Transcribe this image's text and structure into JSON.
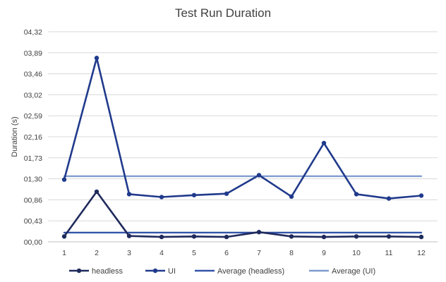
{
  "chart_data": {
    "type": "line",
    "title": "Test Run Duration",
    "xlabel": "",
    "ylabel": "Duration (s)",
    "categories": [
      "1",
      "2",
      "3",
      "4",
      "5",
      "6",
      "7",
      "8",
      "9",
      "10",
      "11",
      "12"
    ],
    "y_ticks": [
      "00,00",
      "00,43",
      "00,86",
      "01,30",
      "01,73",
      "02,16",
      "02,59",
      "03,02",
      "03,46",
      "03,89",
      "04,32"
    ],
    "ylim": [
      0,
      4.32
    ],
    "grid": true,
    "legend_position": "bottom",
    "series": [
      {
        "name": "headless",
        "color": "#1f2a5c",
        "markers": true,
        "values": [
          0.11,
          1.03,
          0.12,
          0.1,
          0.11,
          0.1,
          0.2,
          0.11,
          0.1,
          0.11,
          0.11,
          0.1
        ]
      },
      {
        "name": "UI",
        "color": "#203a8c",
        "markers": true,
        "values": [
          1.28,
          3.78,
          0.98,
          0.92,
          0.96,
          0.99,
          1.37,
          0.93,
          2.03,
          0.98,
          0.89,
          0.95
        ]
      },
      {
        "name": "Average (headless)",
        "color": "#3355aa",
        "markers": false,
        "values": [
          0.19,
          0.19,
          0.19,
          0.19,
          0.19,
          0.19,
          0.19,
          0.19,
          0.19,
          0.19,
          0.19,
          0.19
        ]
      },
      {
        "name": "Average (UI)",
        "color": "#7f9bd0",
        "markers": false,
        "values": [
          1.35,
          1.35,
          1.35,
          1.35,
          1.35,
          1.35,
          1.35,
          1.35,
          1.35,
          1.35,
          1.35,
          1.35
        ]
      }
    ]
  }
}
